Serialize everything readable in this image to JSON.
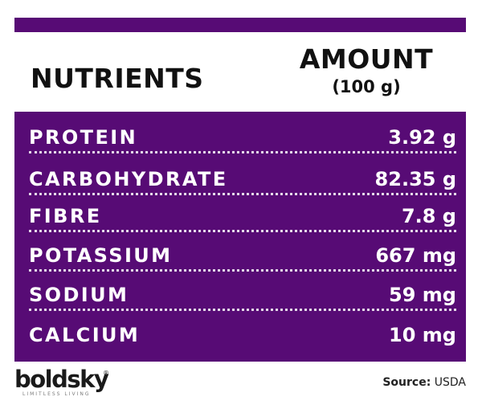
{
  "header": {
    "nutrients_label": "NUTRIENTS",
    "amount_label": "AMOUNT",
    "amount_unit": "(100 g)"
  },
  "rows": [
    {
      "name": "PROTEIN",
      "value": "3.92 g"
    },
    {
      "name": "CARBOHYDRATE",
      "value": "82.35 g"
    },
    {
      "name": "FIBRE",
      "value": "7.8 g"
    },
    {
      "name": "POTASSIUM",
      "value": "667 mg"
    },
    {
      "name": "SODIUM",
      "value": "59 mg"
    },
    {
      "name": "CALCIUM",
      "value": "10 mg"
    }
  ],
  "logo": {
    "brand": "boldsky",
    "registered": "®",
    "tagline": "LIMITLESS LIVING"
  },
  "source": {
    "label": "Source:",
    "value": "USDA"
  },
  "colors": {
    "accent": "#570b75",
    "text_on_accent": "#ffffff",
    "heading": "#111111"
  }
}
